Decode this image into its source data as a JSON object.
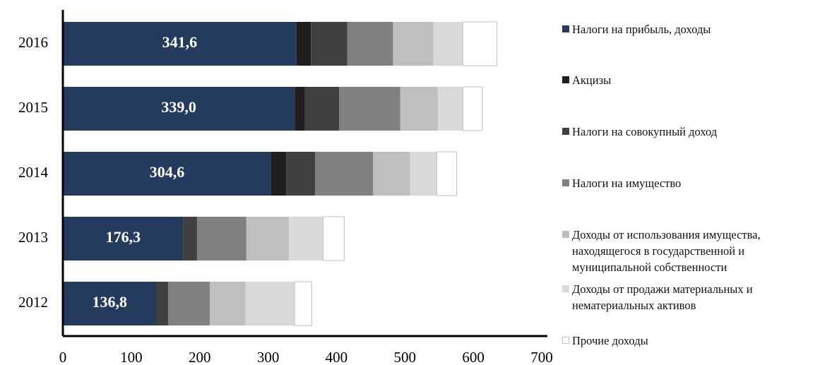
{
  "chart_data": {
    "type": "stacked-bar-horizontal",
    "categories": [
      "2016",
      "2015",
      "2014",
      "2013",
      "2012"
    ],
    "xlim": [
      0,
      700
    ],
    "xticks": [
      0,
      100,
      200,
      300,
      400,
      500,
      600,
      700
    ],
    "series": [
      {
        "name": "Налоги на прибыль, доходы",
        "color": "#243b5e",
        "values": [
          341.6,
          339.0,
          304.6,
          176.3,
          136.8
        ],
        "value_labels": [
          "341,6",
          "339,0",
          "304,6",
          "176,3",
          "136,8"
        ]
      },
      {
        "name": "Акцизы",
        "color": "#1f1f1f",
        "values": [
          21,
          15,
          22,
          0,
          0
        ]
      },
      {
        "name": "Налоги на совокупный доход",
        "color": "#404040",
        "values": [
          53,
          50,
          42,
          20,
          17
        ]
      },
      {
        "name": "Налоги на имущество",
        "color": "#808080",
        "values": [
          67,
          89,
          85,
          72,
          61
        ]
      },
      {
        "name": "Доходы от использования имущества, находящегося в государственной и муниципальной собственности",
        "color": "#bfbfbf",
        "values": [
          59,
          55,
          54,
          62,
          52
        ]
      },
      {
        "name": "Доходы от продажи материальных и нематериальных активов",
        "color": "#d9d9d9",
        "values": [
          43,
          37,
          39,
          50,
          72
        ]
      },
      {
        "name": "Прочие доходы",
        "color": "#ffffff",
        "values": [
          50,
          28,
          29,
          31,
          25
        ]
      }
    ]
  }
}
